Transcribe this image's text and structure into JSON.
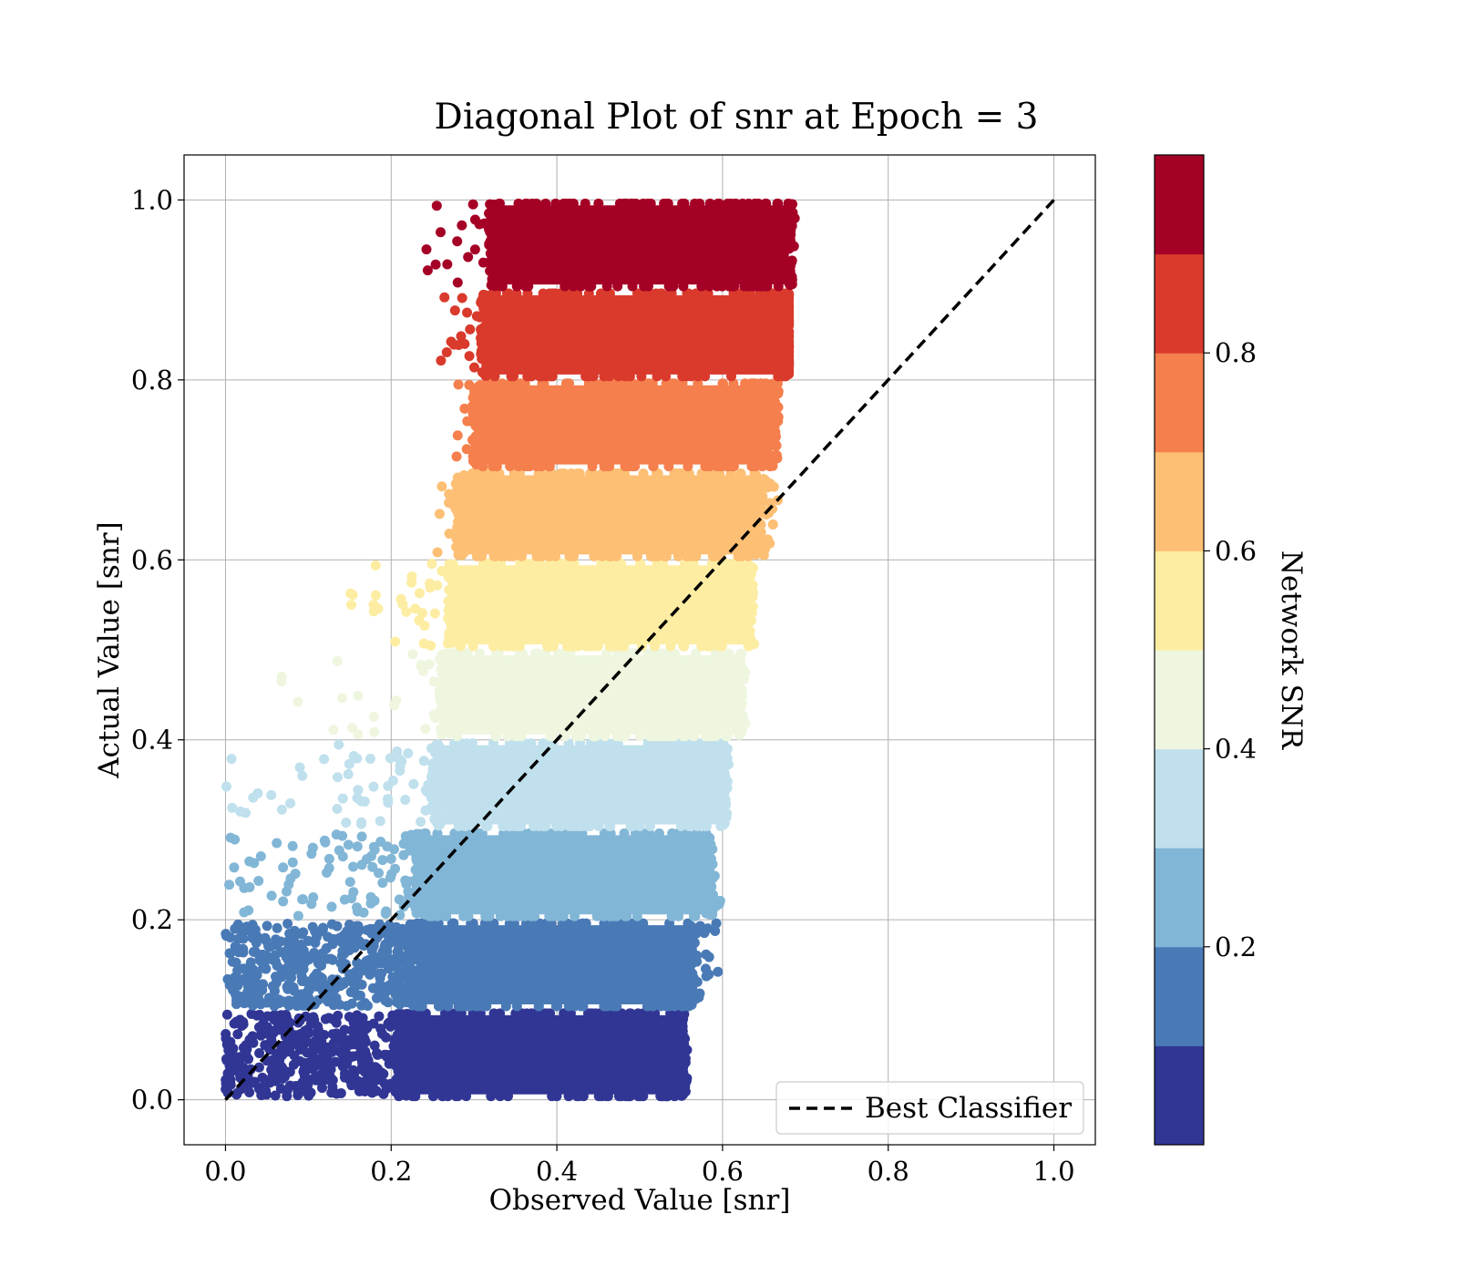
{
  "chart_data": {
    "type": "scatter",
    "title": "Diagonal Plot of snr at Epoch = 3",
    "xlabel": "Observed Value [snr]",
    "ylabel": "Actual Value [snr]",
    "xlim": [
      -0.05,
      1.05
    ],
    "ylim": [
      -0.05,
      1.05
    ],
    "xticks": [
      "0.0",
      "0.2",
      "0.4",
      "0.6",
      "0.8",
      "1.0"
    ],
    "yticks": [
      "0.0",
      "0.2",
      "0.4",
      "0.6",
      "0.8",
      "1.0"
    ],
    "grid": true,
    "legend": {
      "position": "lower-right",
      "entries": [
        "Best Classifier"
      ]
    },
    "reference_line": {
      "name": "Best Classifier",
      "style": "dashed",
      "color": "#000000",
      "x": [
        0.0,
        1.0
      ],
      "y": [
        0.0,
        1.0
      ]
    },
    "colorbar": {
      "label": "Network SNR",
      "range": [
        0.0,
        1.0
      ],
      "ticks": [
        "0.2",
        "0.4",
        "0.6",
        "0.8"
      ],
      "colors": [
        "#313695",
        "#4a7ab6",
        "#82b6d6",
        "#bfe0ec",
        "#eef6df",
        "#fdeda3",
        "#fcbf74",
        "#f57f4d",
        "#d93a2c",
        "#a50026"
      ]
    },
    "bands": [
      {
        "y_range": [
          0.0,
          0.1
        ],
        "core_x": [
          0.22,
          0.55
        ],
        "tail_x": [
          0.0,
          0.22
        ],
        "max_x": 0.56
      },
      {
        "y_range": [
          0.1,
          0.2
        ],
        "core_x": [
          0.23,
          0.56
        ],
        "tail_x": [
          0.0,
          0.23
        ],
        "max_x": 0.6
      },
      {
        "y_range": [
          0.2,
          0.3
        ],
        "core_x": [
          0.24,
          0.58
        ],
        "tail_x": [
          0.0,
          0.24
        ],
        "max_x": 0.6
      },
      {
        "y_range": [
          0.3,
          0.4
        ],
        "core_x": [
          0.26,
          0.6
        ],
        "tail_x": [
          0.0,
          0.26
        ],
        "max_x": 0.61
      },
      {
        "y_range": [
          0.4,
          0.5
        ],
        "core_x": [
          0.27,
          0.62
        ],
        "tail_x": [
          0.05,
          0.27
        ],
        "max_x": 0.63
      },
      {
        "y_range": [
          0.5,
          0.6
        ],
        "core_x": [
          0.28,
          0.63
        ],
        "tail_x": [
          0.15,
          0.28
        ],
        "max_x": 0.64
      },
      {
        "y_range": [
          0.6,
          0.7
        ],
        "core_x": [
          0.29,
          0.64
        ],
        "tail_x": [
          0.25,
          0.29
        ],
        "max_x": 0.67
      },
      {
        "y_range": [
          0.7,
          0.8
        ],
        "core_x": [
          0.31,
          0.66
        ],
        "tail_x": [
          0.26,
          0.31
        ],
        "max_x": 0.67
      },
      {
        "y_range": [
          0.8,
          0.9
        ],
        "core_x": [
          0.32,
          0.68
        ],
        "tail_x": [
          0.26,
          0.32
        ],
        "max_x": 0.68
      },
      {
        "y_range": [
          0.9,
          1.0
        ],
        "core_x": [
          0.33,
          0.68
        ],
        "tail_x": [
          0.24,
          0.33
        ],
        "max_x": 0.69
      }
    ]
  }
}
